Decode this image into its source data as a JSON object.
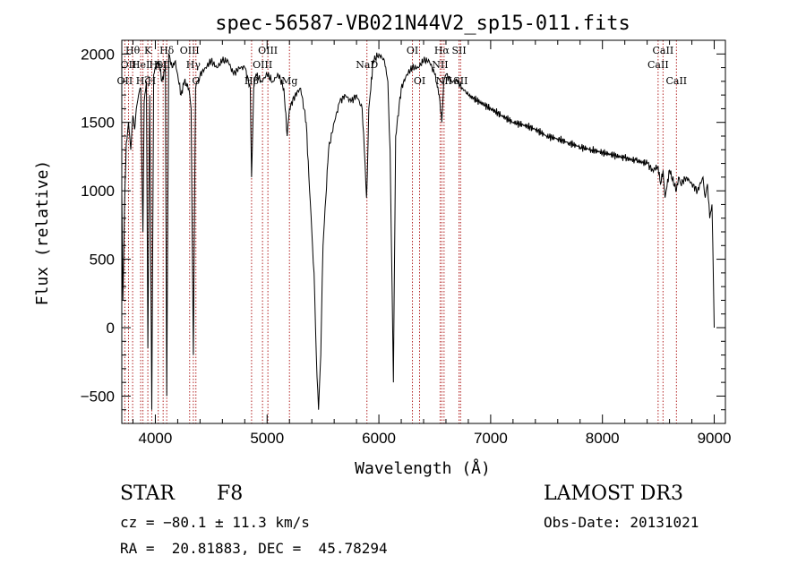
{
  "chart_data": {
    "type": "line",
    "title": "spec-56587-VB021N44V2_sp15-011.fits",
    "xlabel": "Wavelength (Å)",
    "ylabel": "Flux (relative)",
    "xlim": [
      3700,
      9100
    ],
    "ylim": [
      -700,
      2100
    ],
    "xticks": [
      4000,
      5000,
      6000,
      7000,
      8000,
      9000
    ],
    "yticks": [
      -500,
      0,
      500,
      1000,
      1500,
      2000
    ],
    "series": [
      {
        "name": "flux",
        "x": [
          3700,
          3710,
          3725,
          3740,
          3760,
          3780,
          3800,
          3815,
          3830,
          3850,
          3870,
          3889,
          3900,
          3920,
          3933,
          3950,
          3968,
          3985,
          4000,
          4030,
          4060,
          4090,
          4102,
          4120,
          4150,
          4180,
          4200,
          4230,
          4260,
          4300,
          4320,
          4340,
          4360,
          4380,
          4400,
          4450,
          4500,
          4550,
          4600,
          4650,
          4700,
          4750,
          4800,
          4850,
          4861,
          4880,
          4900,
          4950,
          5000,
          5050,
          5100,
          5150,
          5180,
          5200,
          5250,
          5300,
          5350,
          5380,
          5400,
          5420,
          5440,
          5460,
          5480,
          5500,
          5550,
          5600,
          5650,
          5700,
          5750,
          5800,
          5850,
          5870,
          5890,
          5896,
          5910,
          5950,
          6000,
          6050,
          6080,
          6100,
          6130,
          6150,
          6200,
          6250,
          6300,
          6350,
          6400,
          6450,
          6500,
          6540,
          6563,
          6580,
          6600,
          6650,
          6700,
          6750,
          6800,
          6900,
          7000,
          7100,
          7200,
          7300,
          7400,
          7500,
          7600,
          7700,
          7800,
          7900,
          8000,
          8100,
          8200,
          8300,
          8400,
          8450,
          8498,
          8520,
          8542,
          8560,
          8600,
          8662,
          8680,
          8700,
          8750,
          8800,
          8850,
          8900,
          8920,
          8940,
          8960,
          8980,
          9000
        ],
        "values": [
          1000,
          200,
          900,
          1350,
          1500,
          1300,
          1550,
          1450,
          1600,
          1700,
          1750,
          700,
          1650,
          1800,
          -150,
          1700,
          -600,
          1850,
          1900,
          1950,
          1800,
          1900,
          -500,
          2000,
          1900,
          1950,
          1850,
          1700,
          1800,
          1750,
          1600,
          -200,
          1750,
          1800,
          1850,
          1900,
          1950,
          1900,
          1950,
          1950,
          1850,
          1900,
          1900,
          1750,
          1100,
          1750,
          1850,
          1800,
          1850,
          1800,
          1850,
          1750,
          1400,
          1600,
          1700,
          1750,
          1500,
          1000,
          700,
          400,
          -200,
          -600,
          -200,
          600,
          1300,
          1500,
          1650,
          1700,
          1650,
          1700,
          1600,
          1300,
          950,
          1100,
          1600,
          1950,
          2000,
          1950,
          1800,
          1300,
          -400,
          1400,
          1750,
          1850,
          1900,
          1900,
          1950,
          1950,
          1850,
          1700,
          1500,
          1800,
          1850,
          1800,
          1800,
          1750,
          1700,
          1650,
          1600,
          1550,
          1500,
          1480,
          1450,
          1400,
          1380,
          1350,
          1320,
          1300,
          1280,
          1260,
          1240,
          1220,
          1200,
          1150,
          1180,
          1050,
          1150,
          950,
          1150,
          1000,
          1100,
          1050,
          1100,
          1050,
          1000,
          1100,
          950,
          1050,
          800,
          900,
          0
        ]
      }
    ],
    "lines": [
      {
        "wave": 3727,
        "label": "OII",
        "row": 3
      },
      {
        "wave": 3760,
        "label": "OII",
        "row": 1
      },
      {
        "wave": 3797,
        "label": "Hθ",
        "row": 0
      },
      {
        "wave": 3869,
        "label": "HeI",
        "row": 1
      },
      {
        "wave": 3889,
        "label": "Hζ",
        "row": 3
      },
      {
        "wave": 3933,
        "label": "K",
        "row": 0
      },
      {
        "wave": 3968,
        "label": "H",
        "row": 3
      },
      {
        "wave": 4026,
        "label": "HeI",
        "row": 1
      },
      {
        "wave": 4070,
        "label": "SII",
        "row": 1
      },
      {
        "wave": 4102,
        "label": "Hδ",
        "row": 0
      },
      {
        "wave": 4307,
        "label": "OIII",
        "row": 0
      },
      {
        "wave": 4340,
        "label": "Hγ",
        "row": 1
      },
      {
        "wave": 4363,
        "label": "G",
        "row": 3
      },
      {
        "wave": 4861,
        "label": "Hβ",
        "row": 3
      },
      {
        "wave": 4959,
        "label": "OIII",
        "row": 1
      },
      {
        "wave": 5007,
        "label": "OIII",
        "row": 0
      },
      {
        "wave": 5200,
        "label": "Mg",
        "row": 4
      },
      {
        "wave": 5893,
        "label": "NaD",
        "row": 1
      },
      {
        "wave": 6300,
        "label": "OI",
        "row": 0
      },
      {
        "wave": 6364,
        "label": "OI",
        "row": 3
      },
      {
        "wave": 6548,
        "label": "NII",
        "row": 1
      },
      {
        "wave": 6563,
        "label": "Hα",
        "row": 0
      },
      {
        "wave": 6583,
        "label": "NII",
        "row": 3
      },
      {
        "wave": 6717,
        "label": "SII",
        "row": 0
      },
      {
        "wave": 6731,
        "label": "SII",
        "row": 3
      },
      {
        "wave": 8498,
        "label": "CaII",
        "row": 1
      },
      {
        "wave": 8542,
        "label": "CaII",
        "row": 0
      },
      {
        "wave": 8662,
        "label": "CaII",
        "row": 2
      }
    ]
  },
  "info": {
    "object_class": "STAR",
    "subclass": "F8",
    "survey": "LAMOST DR3",
    "cz": "cz = −80.1 ± 11.3 km/s",
    "obs_date": "Obs-Date: 20131021",
    "radec": "RA =  20.81883, DEC =  45.78294"
  },
  "colors": {
    "line_marker": "#b22222",
    "spectrum": "#000000"
  }
}
